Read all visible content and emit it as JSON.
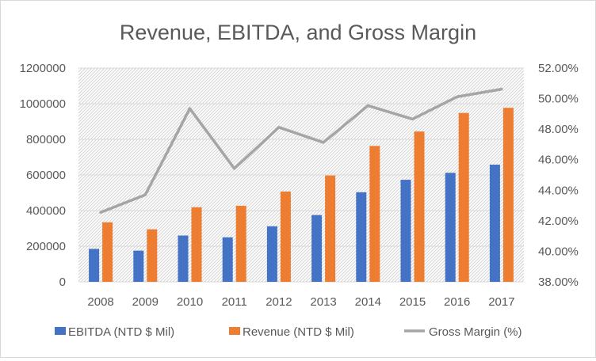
{
  "chart_data": {
    "type": "bar+line",
    "title": "Revenue, EBITDA, and Gross Margin",
    "categories": [
      "2008",
      "2009",
      "2010",
      "2011",
      "2012",
      "2013",
      "2014",
      "2015",
      "2016",
      "2017"
    ],
    "series": [
      {
        "name": "EBITDA (NTD $ Mil)",
        "type": "bar",
        "axis": "left",
        "color": "#4472c4",
        "values": [
          185000,
          175000,
          260000,
          250000,
          312000,
          375000,
          503000,
          573000,
          612000,
          658000
        ]
      },
      {
        "name": "Revenue (NTD $ Mil)",
        "type": "bar",
        "axis": "left",
        "color": "#ed7d31",
        "values": [
          334000,
          295000,
          419000,
          427000,
          507000,
          597000,
          763000,
          844000,
          948000,
          977000
        ]
      },
      {
        "name": "Gross Margin (%)",
        "type": "line",
        "axis": "right",
        "color": "#a5a5a5",
        "values": [
          0.4255,
          0.437,
          0.4935,
          0.4542,
          0.4812,
          0.4713,
          0.4954,
          0.4866,
          0.5012,
          0.5062
        ]
      }
    ],
    "left_axis": {
      "min": 0,
      "max": 1200000,
      "step": 200000,
      "tick_labels": [
        "0",
        "200000",
        "400000",
        "600000",
        "800000",
        "1000000",
        "1200000"
      ]
    },
    "right_axis": {
      "min": 0.38,
      "max": 0.52,
      "step": 0.02,
      "tick_labels": [
        "38.00%",
        "40.00%",
        "42.00%",
        "44.00%",
        "46.00%",
        "48.00%",
        "50.00%",
        "52.00%"
      ]
    },
    "legend_position": "bottom",
    "grid": true
  }
}
